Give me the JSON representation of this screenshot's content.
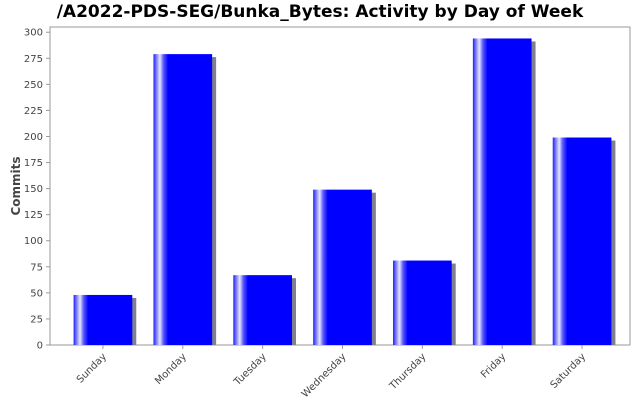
{
  "chart_data": {
    "type": "bar",
    "title": "/A2022-PDS-SEG/Bunka_Bytes: Activity by Day of Week",
    "xlabel": "",
    "ylabel": "Commits",
    "categories": [
      "Sunday",
      "Monday",
      "Tuesday",
      "Wednesday",
      "Thursday",
      "Friday",
      "Saturday"
    ],
    "values": [
      48,
      279,
      67,
      149,
      81,
      294,
      199
    ],
    "ylim": [
      0,
      305
    ],
    "yticks": [
      "0",
      "25",
      "50",
      "75",
      "100",
      "125",
      "150",
      "175",
      "200",
      "225",
      "250",
      "275",
      "300"
    ],
    "bar_color": "#0000ff",
    "shadow_color": "#7f7f8f",
    "grid": false,
    "legend": "none"
  }
}
